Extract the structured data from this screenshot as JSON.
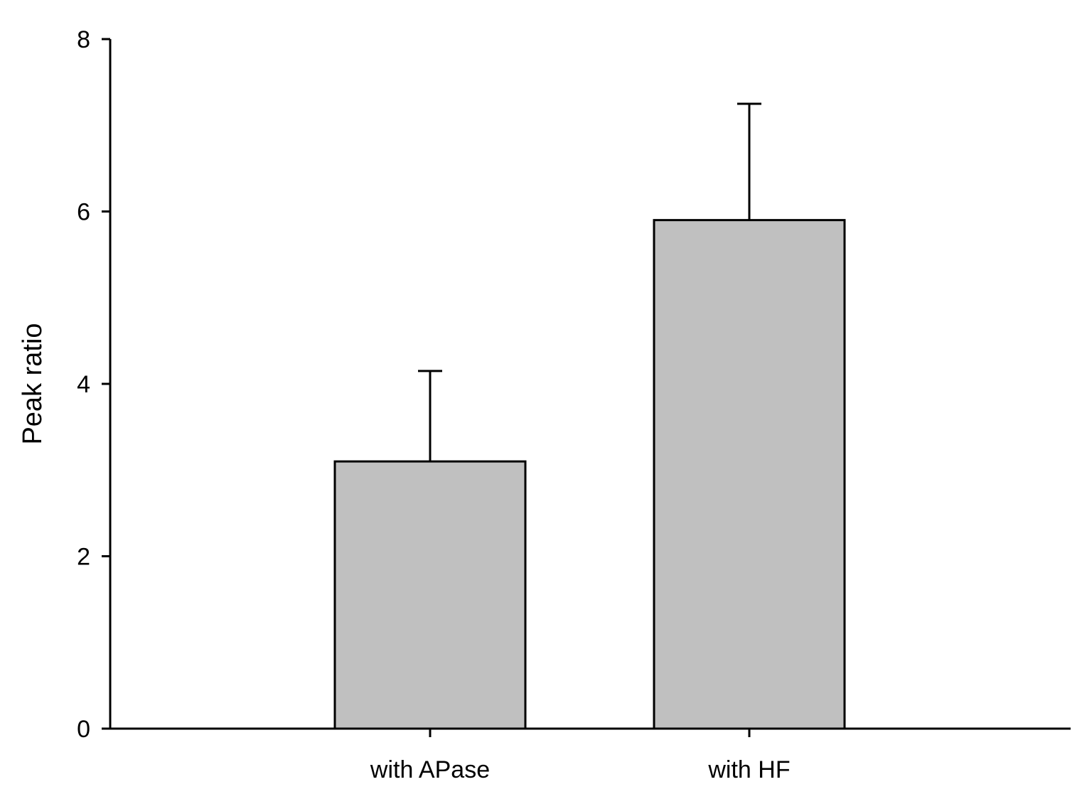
{
  "chart_data": {
    "type": "bar",
    "title": "",
    "xlabel": "",
    "ylabel": "Peak ratio",
    "categories": [
      "with APase",
      "with HF"
    ],
    "values": [
      3.1,
      5.9
    ],
    "error_upper": [
      1.05,
      1.35
    ],
    "ylim": [
      0,
      8
    ],
    "yticks": [
      "0",
      "2",
      "4",
      "6",
      "8"
    ],
    "grid": false,
    "legend": "none",
    "bar_color": "#c0c0c0",
    "edge_color": "#000000"
  }
}
